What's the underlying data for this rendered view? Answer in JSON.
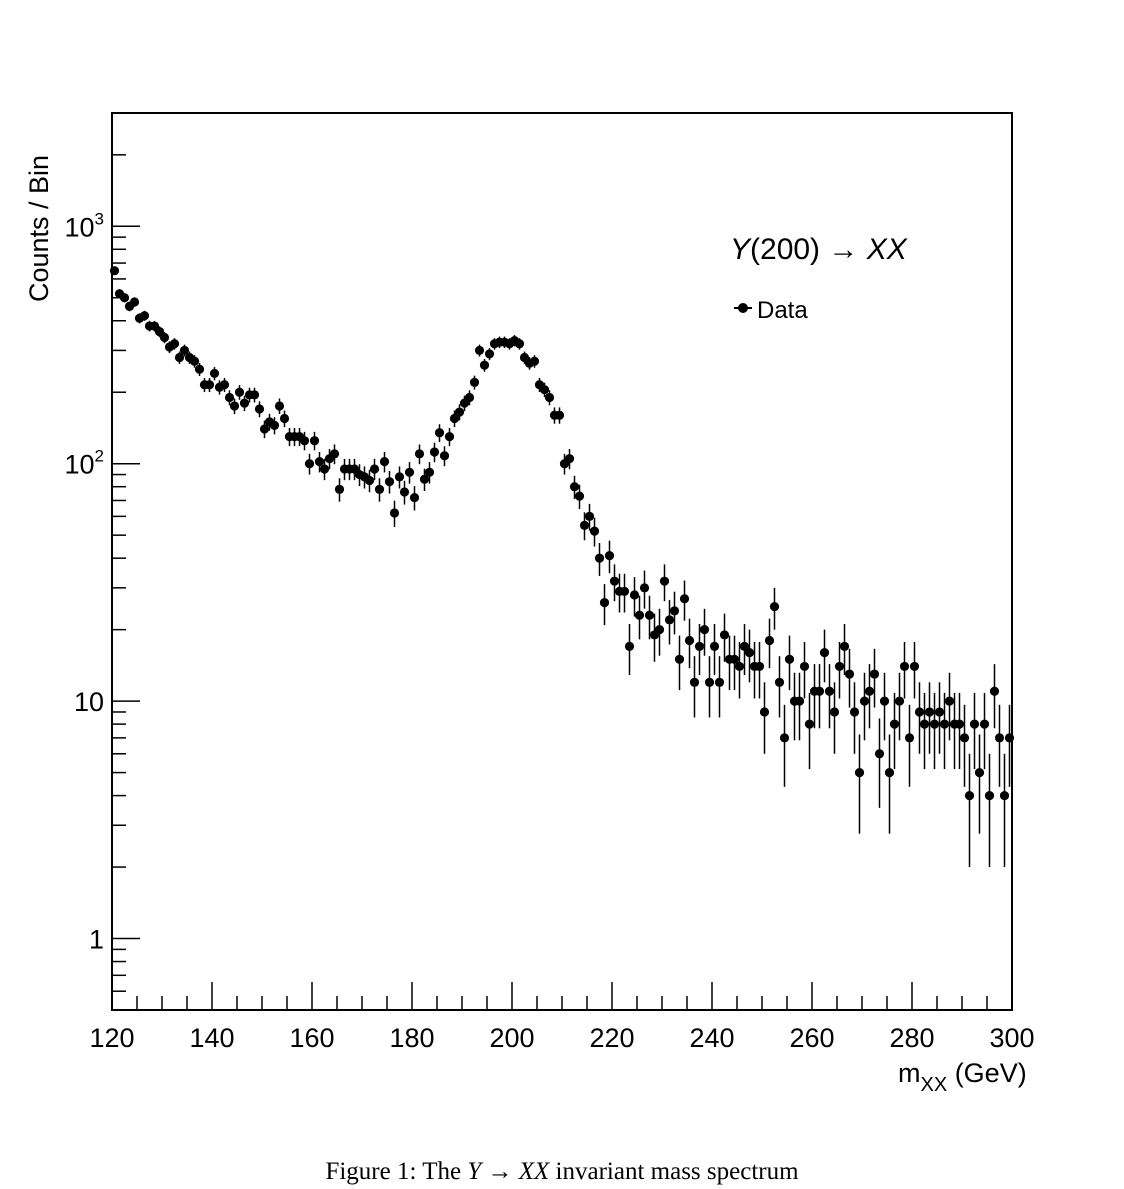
{
  "chart_data": {
    "type": "scatter",
    "subtype": "histogram-points-with-error-bars",
    "title": "",
    "xlabel": "m",
    "xlabel_sub": "XX",
    "xlabel_unit": " (GeV)",
    "ylabel": "Counts / Bin",
    "xlim": [
      120,
      300
    ],
    "ylim": [
      0.5,
      3000
    ],
    "yscale": "log",
    "grid": false,
    "legend_position": "top-right",
    "annotation": {
      "italic_y": "Y",
      "mass": "(200) → ",
      "italic_xx": "XX"
    },
    "x_ticks": [
      "120",
      "140",
      "160",
      "180",
      "200",
      "220",
      "240",
      "260",
      "280",
      "300"
    ],
    "y_ticks": [
      {
        "value": 1,
        "label": "1"
      },
      {
        "value": 10,
        "label": "10"
      },
      {
        "value": 100,
        "label": "10",
        "sup": "2"
      },
      {
        "value": 1000,
        "label": "10",
        "sup": "3"
      }
    ],
    "series": [
      {
        "name": "Data",
        "color": "#000000",
        "x": [
          120.5,
          121.5,
          122.5,
          123.5,
          124.5,
          125.5,
          126.5,
          127.5,
          128.5,
          129.5,
          130.5,
          131.5,
          132.5,
          133.5,
          134.5,
          135.5,
          136.5,
          137.5,
          138.5,
          139.5,
          140.5,
          141.5,
          142.5,
          143.5,
          144.5,
          145.5,
          146.5,
          147.5,
          148.5,
          149.5,
          150.5,
          151.5,
          152.5,
          153.5,
          154.5,
          155.5,
          156.5,
          157.5,
          158.5,
          159.5,
          160.5,
          161.5,
          162.5,
          163.5,
          164.5,
          165.5,
          166.5,
          167.5,
          168.5,
          169.5,
          170.5,
          171.5,
          172.5,
          173.5,
          174.5,
          175.5,
          176.5,
          177.5,
          178.5,
          179.5,
          180.5,
          181.5,
          182.5,
          183.5,
          184.5,
          185.5,
          186.5,
          187.5,
          188.5,
          189.5,
          190.5,
          191.5,
          192.5,
          193.5,
          194.5,
          195.5,
          196.5,
          197.5,
          198.5,
          199.5,
          200.5,
          201.5,
          202.5,
          203.5,
          204.5,
          205.5,
          206.5,
          207.5,
          208.5,
          209.5,
          210.5,
          211.5,
          212.5,
          213.5,
          214.5,
          215.5,
          216.5,
          217.5,
          218.5,
          219.5,
          220.5,
          221.5,
          222.5,
          223.5,
          224.5,
          225.5,
          226.5,
          227.5,
          228.5,
          229.5,
          230.5,
          231.5,
          232.5,
          233.5,
          234.5,
          235.5,
          236.5,
          237.5,
          238.5,
          239.5,
          240.5,
          241.5,
          242.5,
          243.5,
          244.5,
          245.5,
          246.5,
          247.5,
          248.5,
          249.5,
          250.5,
          251.5,
          252.5,
          253.5,
          254.5,
          255.5,
          256.5,
          257.5,
          258.5,
          259.5,
          260.5,
          261.5,
          262.5,
          263.5,
          264.5,
          265.5,
          266.5,
          267.5,
          268.5,
          269.5,
          270.5,
          271.5,
          272.5,
          273.5,
          274.5,
          275.5,
          276.5,
          277.5,
          278.5,
          279.5,
          280.5,
          281.5,
          282.5,
          283.5,
          284.5,
          285.5,
          286.5,
          287.5,
          288.5,
          289.5,
          290.5,
          291.5,
          292.5,
          293.5,
          294.5,
          295.5,
          296.5,
          297.5,
          298.5,
          299.5
        ],
        "y": [
          650,
          520,
          500,
          460,
          480,
          410,
          420,
          380,
          380,
          360,
          340,
          310,
          320,
          280,
          300,
          280,
          270,
          250,
          215,
          215,
          240,
          210,
          215,
          190,
          175,
          200,
          180,
          195,
          195,
          170,
          140,
          150,
          145,
          175,
          155,
          130,
          130,
          130,
          125,
          100,
          125,
          102,
          95,
          105,
          110,
          78,
          95,
          95,
          95,
          90,
          88,
          85,
          95,
          78,
          102,
          84,
          62,
          88,
          76,
          92,
          72,
          110,
          86,
          92,
          112,
          135,
          108,
          130,
          155,
          165,
          180,
          190,
          220,
          300,
          260,
          290,
          320,
          325,
          325,
          320,
          330,
          320,
          280,
          265,
          270,
          215,
          205,
          190,
          160,
          160,
          100,
          105,
          80,
          73,
          55,
          60,
          52,
          40,
          26,
          41,
          32,
          29,
          29,
          17,
          28,
          23,
          30,
          23,
          19,
          20,
          32,
          22,
          24,
          15,
          27,
          18,
          12,
          17,
          20,
          12,
          17,
          12,
          19,
          15,
          15,
          14,
          17,
          16,
          14,
          14,
          9,
          18,
          25,
          12,
          7,
          15,
          10,
          10,
          14,
          8,
          11,
          11,
          16,
          11,
          9,
          14,
          17,
          13,
          9,
          5,
          10,
          11,
          13,
          6,
          10,
          5,
          8,
          10,
          14,
          7,
          14,
          9,
          8,
          9,
          8,
          9,
          8,
          10,
          8,
          8,
          7,
          4,
          8,
          5,
          8,
          4,
          11,
          7,
          4,
          7
        ]
      }
    ]
  },
  "caption": {
    "prefix": "Figure 1: The ",
    "italic_y": "Y",
    "arrow": " → ",
    "italic_xx": "XX",
    "suffix": " invariant mass spectrum"
  }
}
